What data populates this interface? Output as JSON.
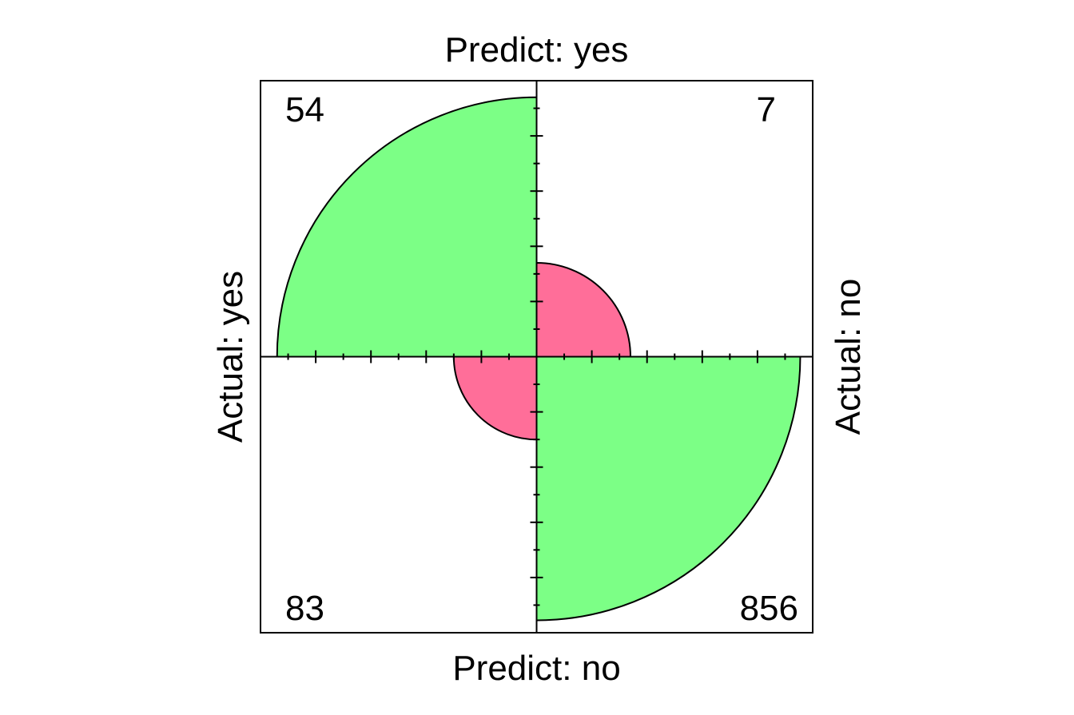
{
  "chart_data": {
    "type": "fourfold",
    "top_label": "Predict: yes",
    "bottom_label": "Predict: no",
    "left_label": "Actual: yes",
    "right_label": "Actual: no",
    "cells": [
      {
        "id": "actual-yes-predict-yes",
        "quadrant": "top-left",
        "count": 54,
        "label": "54",
        "color": "#7cff86"
      },
      {
        "id": "actual-no-predict-yes",
        "quadrant": "top-right",
        "count": 7,
        "label": "7",
        "color": "#ff6e99"
      },
      {
        "id": "actual-yes-predict-no",
        "quadrant": "bottom-left",
        "count": 83,
        "label": "83",
        "color": "#ff6e99"
      },
      {
        "id": "actual-no-predict-no",
        "quadrant": "bottom-right",
        "count": 856,
        "label": "856",
        "color": "#7cff86"
      }
    ],
    "relative_radius": {
      "top-left": 0.94,
      "top-right": 0.34,
      "bottom-left": 0.3,
      "bottom-right": 0.955
    },
    "tick_count": 10,
    "colors": {
      "positive": "#7cff86",
      "negative": "#ff6e99",
      "outline": "#000000"
    }
  }
}
